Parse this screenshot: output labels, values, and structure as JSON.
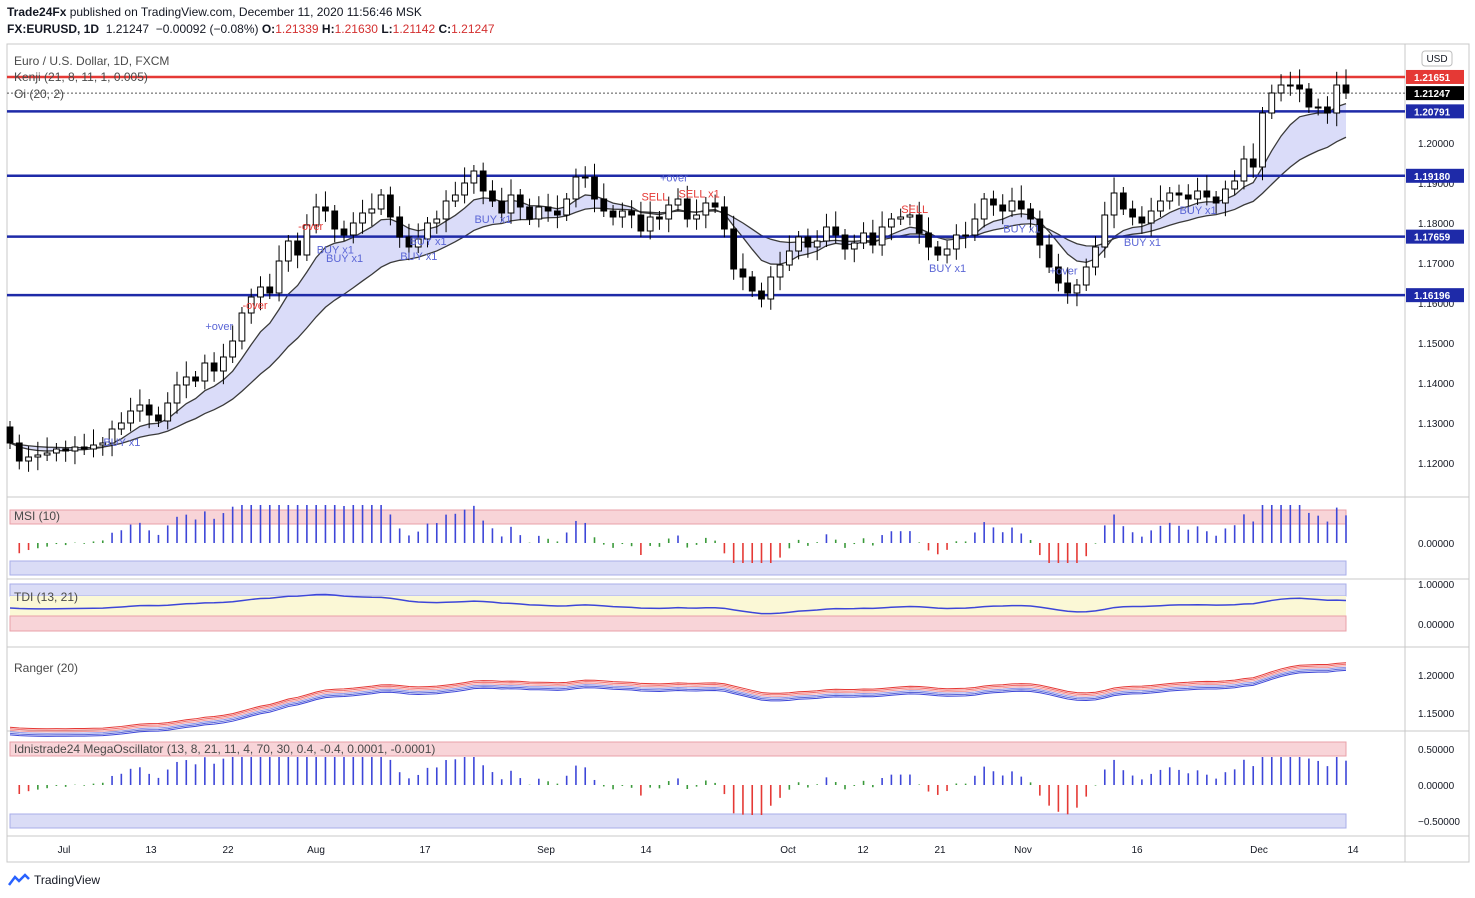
{
  "header": {
    "line1": {
      "brand": "Trade24Fx",
      "rest": " published on TradingView.com, December 11, 2020 11:56:46 MSK"
    },
    "line2": {
      "symbol": "FX:EURUSD, 1D",
      "last": "1.21247",
      "change": "−0.00092 (−0.08%)",
      "o_label": "O:",
      "o": "1.21339",
      "h_label": "H:",
      "h": "1.21630",
      "l_label": "L:",
      "l": "1.21142",
      "c_label": "C:",
      "c": "1.21247"
    }
  },
  "main_pane": {
    "title": "Euro / U.S. Dollar, 1D, FXCM",
    "ind1": "Kenji (21, 8, 11, 1, 0.005)",
    "ind2": "Oi (20, 2)",
    "currency_badge": "USD",
    "price_ticks": [
      "1.20000",
      "1.19000",
      "1.18000",
      "1.17000",
      "1.16000",
      "1.15000",
      "1.14000",
      "1.13000",
      "1.12000"
    ],
    "level_tags": [
      {
        "text": "1.21651",
        "color": "#e53935"
      },
      {
        "text": "1.21247",
        "color": "#000000"
      },
      {
        "text": "1.20791",
        "color": "#1e2aa8"
      },
      {
        "text": "1.19180",
        "color": "#1e2aa8"
      },
      {
        "text": "1.17659",
        "color": "#1e2aa8"
      },
      {
        "text": "1.16196",
        "color": "#1e2aa8"
      }
    ],
    "signals": [
      {
        "text": "BUY x1",
        "color": "#5b66d6"
      },
      {
        "text": "+over",
        "color": "#5b66d6"
      },
      {
        "text": "-over",
        "color": "#e53935"
      },
      {
        "text": "-over",
        "color": "#e53935"
      },
      {
        "text": "BUY x1",
        "color": "#5b66d6"
      },
      {
        "text": "BUY x1",
        "color": "#5b66d6"
      },
      {
        "text": "BUY x1",
        "color": "#5b66d6"
      },
      {
        "text": "BUY x1",
        "color": "#5b66d6"
      },
      {
        "text": "BUY x1",
        "color": "#5b66d6"
      },
      {
        "text": "SELL",
        "color": "#e53935"
      },
      {
        "text": "+over",
        "color": "#5b66d6"
      },
      {
        "text": "SELL x1",
        "color": "#e53935"
      },
      {
        "text": "SELL",
        "color": "#e53935"
      },
      {
        "text": "BUY x1",
        "color": "#5b66d6"
      },
      {
        "text": "BUY x1",
        "color": "#5b66d6"
      },
      {
        "text": "BUY x1",
        "color": "#5b66d6"
      },
      {
        "text": "+over",
        "color": "#5b66d6"
      },
      {
        "text": "BUY x1",
        "color": "#5b66d6"
      }
    ]
  },
  "panes": {
    "msi": {
      "title": "MSI (10)",
      "ticks": [
        "0.00000"
      ]
    },
    "tdi": {
      "title": "TDI (13, 21)",
      "ticks": [
        "1.00000",
        "0.00000"
      ]
    },
    "ranger": {
      "title": "Ranger (20)",
      "ticks": [
        "1.20000",
        "1.15000"
      ]
    },
    "mega": {
      "title": "Idnistrade24 MegaOscillator (13, 8, 21, 11, 4, 70, 30, 0.4, -0.4, 0.0001, -0.0001)",
      "ticks": [
        "0.50000",
        "0.00000",
        "−0.50000"
      ]
    }
  },
  "time_axis": [
    "Jul",
    "13",
    "22",
    "Aug",
    "17",
    "Sep",
    "14",
    "Oct",
    "12",
    "21",
    "Nov",
    "16",
    "Dec",
    "14"
  ],
  "footer": {
    "brand": "TradingView"
  },
  "chart_data": {
    "type": "candlestick",
    "title": "Euro / U.S. Dollar, 1D, FXCM",
    "ylim": [
      1.112,
      1.222
    ],
    "horizontal_levels": [
      1.21651,
      1.20791,
      1.1918,
      1.17659,
      1.16196
    ],
    "last_price": 1.21247,
    "close": [
      1.125,
      1.1205,
      1.1215,
      1.122,
      1.1225,
      1.1235,
      1.123,
      1.124,
      1.1235,
      1.1245,
      1.125,
      1.1285,
      1.13,
      1.133,
      1.1345,
      1.132,
      1.1305,
      1.135,
      1.1395,
      1.1415,
      1.1405,
      1.145,
      1.143,
      1.1465,
      1.1505,
      1.1575,
      1.1615,
      1.164,
      1.1625,
      1.1705,
      1.1755,
      1.172,
      1.1795,
      1.184,
      1.183,
      1.1785,
      1.177,
      1.18,
      1.1825,
      1.1835,
      1.187,
      1.1815,
      1.1765,
      1.174,
      1.176,
      1.18,
      1.181,
      1.1855,
      1.187,
      1.19,
      1.193,
      1.188,
      1.1855,
      1.1825,
      1.187,
      1.184,
      1.181,
      1.184,
      1.183,
      1.182,
      1.186,
      1.1915,
      1.1915,
      1.186,
      1.183,
      1.1815,
      1.183,
      1.182,
      1.178,
      1.1815,
      1.181,
      1.1845,
      1.186,
      1.181,
      1.182,
      1.185,
      1.184,
      1.1785,
      1.1685,
      1.1665,
      1.163,
      1.161,
      1.1665,
      1.1695,
      1.173,
      1.1765,
      1.174,
      1.1755,
      1.179,
      1.177,
      1.1735,
      1.175,
      1.1775,
      1.1745,
      1.179,
      1.181,
      1.1815,
      1.182,
      1.1775,
      1.174,
      1.172,
      1.1735,
      1.177,
      1.177,
      1.181,
      1.186,
      1.1845,
      1.183,
      1.1855,
      1.1835,
      1.181,
      1.1745,
      1.169,
      1.165,
      1.1625,
      1.1645,
      1.169,
      1.174,
      1.182,
      1.1875,
      1.1835,
      1.1815,
      1.18,
      1.183,
      1.1855,
      1.1875,
      1.187,
      1.186,
      1.188,
      1.1865,
      1.185,
      1.1885,
      1.1905,
      1.196,
      1.194,
      1.2075,
      1.2125,
      1.2145,
      1.2145,
      1.2135,
      1.209,
      1.209,
      1.2075,
      1.2145,
      1.2125
    ]
  }
}
